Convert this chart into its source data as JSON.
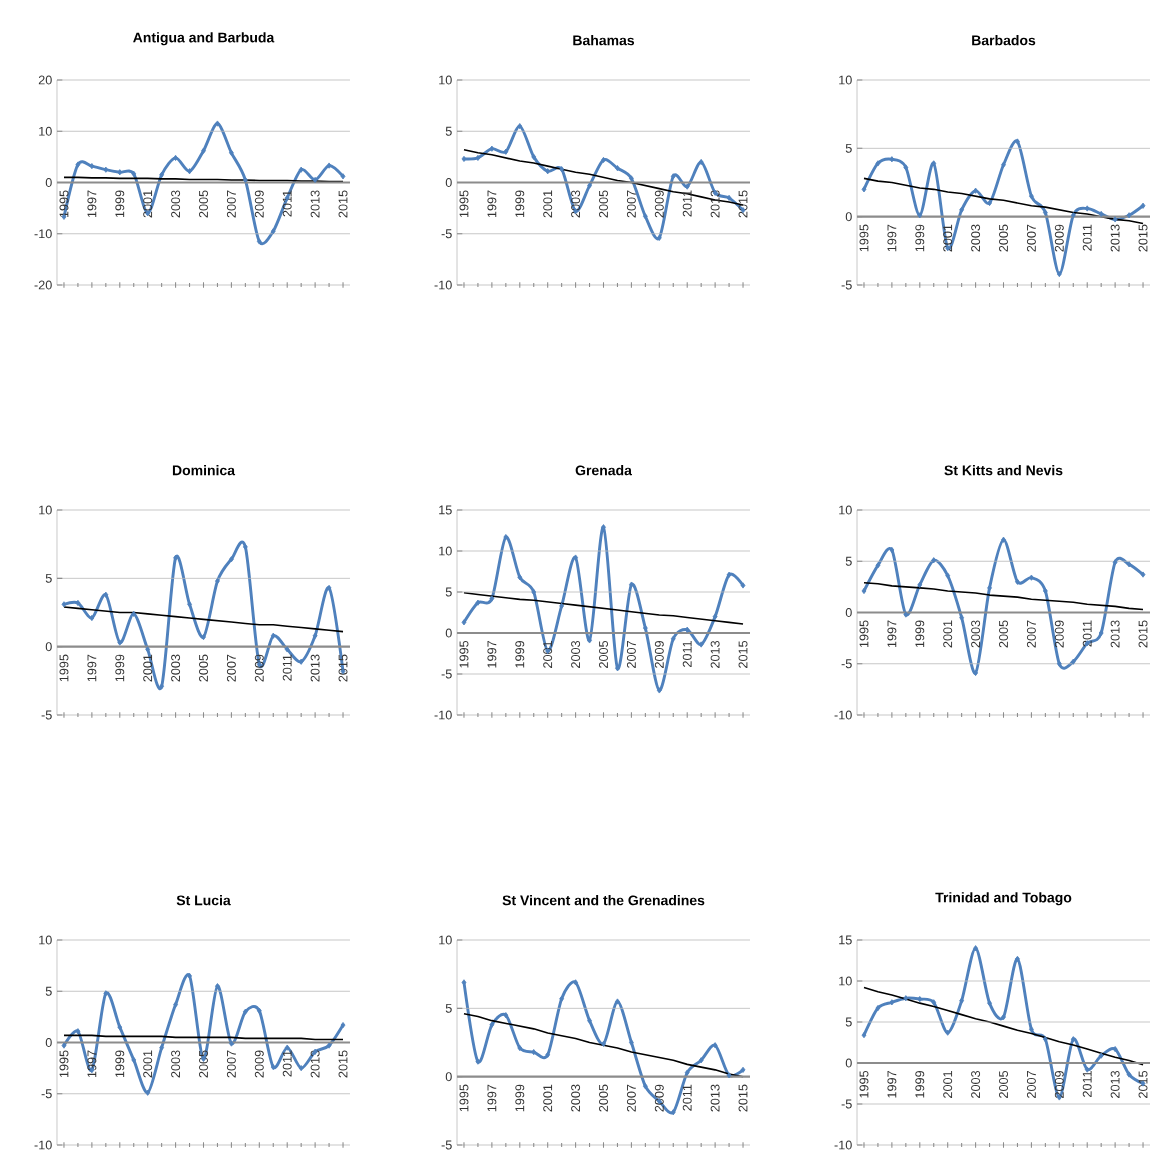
{
  "chart_data": [
    {
      "type": "line",
      "title": "Antigua and Barbuda",
      "x": [
        1995,
        1996,
        1997,
        1998,
        1999,
        2000,
        2001,
        2002,
        2003,
        2004,
        2005,
        2006,
        2007,
        2008,
        2009,
        2010,
        2011,
        2012,
        2013,
        2014,
        2015
      ],
      "xlim": [
        1994.5,
        2015.5
      ],
      "xticks": [
        1995,
        1997,
        1999,
        2001,
        2003,
        2005,
        2007,
        2009,
        2011,
        2013,
        2015
      ],
      "ylim": [
        -20,
        20
      ],
      "yticks": [
        -20,
        -10,
        0,
        10,
        20
      ],
      "grid": "y",
      "marker": "diamond",
      "series": [
        {
          "color": "#4f81bd",
          "values": [
            -6.7,
            3.5,
            3.2,
            2.5,
            2.0,
            1.7,
            -6.0,
            1.5,
            4.8,
            2.2,
            6.2,
            11.5,
            5.8,
            0.5,
            -11.5,
            -9.5,
            -3.0,
            2.5,
            0.5,
            3.3,
            1.2
          ]
        },
        {
          "type": "line",
          "values": [
            1.0,
            1.0,
            0.9,
            0.9,
            0.8,
            0.8,
            0.8,
            0.7,
            0.7,
            0.6,
            0.6,
            0.6,
            0.5,
            0.5,
            0.4,
            0.4,
            0.4,
            0.3,
            0.3,
            0.2,
            0.2
          ],
          "color": "#000000",
          "marker": "none"
        }
      ]
    },
    {
      "type": "line",
      "title": "Bahamas",
      "x": [
        1995,
        1996,
        1997,
        1998,
        1999,
        2000,
        2001,
        2002,
        2003,
        2004,
        2005,
        2006,
        2007,
        2008,
        2009,
        2010,
        2011,
        2012,
        2013,
        2014,
        2015
      ],
      "xlim": [
        1994.5,
        2015.5
      ],
      "xticks": [
        1995,
        1997,
        1999,
        2001,
        2003,
        2005,
        2007,
        2009,
        2011,
        2013,
        2015
      ],
      "ylim": [
        -10,
        10
      ],
      "yticks": [
        -10,
        -5,
        0,
        5,
        10
      ],
      "grid": "y",
      "marker": "diamond",
      "series": [
        {
          "color": "#4f81bd",
          "values": [
            2.3,
            2.4,
            3.3,
            3.0,
            5.5,
            2.5,
            1.1,
            1.3,
            -2.8,
            -0.3,
            2.2,
            1.4,
            0.4,
            -3.3,
            -5.4,
            0.6,
            -0.4,
            2.0,
            -1.0,
            -1.5,
            -2.7
          ]
        },
        {
          "type": "line",
          "values": [
            3.2,
            2.9,
            2.7,
            2.4,
            2.1,
            1.9,
            1.6,
            1.3,
            1.0,
            0.8,
            0.5,
            0.2,
            0.0,
            -0.3,
            -0.6,
            -0.9,
            -1.1,
            -1.4,
            -1.7,
            -1.9,
            -2.2
          ],
          "color": "#000000",
          "marker": "none"
        }
      ]
    },
    {
      "type": "line",
      "title": "Barbados",
      "x": [
        1995,
        1996,
        1997,
        1998,
        1999,
        2000,
        2001,
        2002,
        2003,
        2004,
        2005,
        2006,
        2007,
        2008,
        2009,
        2010,
        2011,
        2012,
        2013,
        2014,
        2015
      ],
      "xlim": [
        1994.5,
        2015.5
      ],
      "xticks": [
        1995,
        1997,
        1999,
        2001,
        2003,
        2005,
        2007,
        2009,
        2011,
        2013,
        2015
      ],
      "ylim": [
        -5,
        10
      ],
      "yticks": [
        -5,
        0,
        5,
        10
      ],
      "grid": "y",
      "marker": "diamond",
      "series": [
        {
          "color": "#4f81bd",
          "values": [
            2.0,
            3.9,
            4.2,
            3.6,
            0.1,
            3.9,
            -2.3,
            0.5,
            1.9,
            1.0,
            3.8,
            5.5,
            1.5,
            0.3,
            -4.2,
            0.1,
            0.6,
            0.2,
            -0.2,
            0.1,
            0.8
          ]
        },
        {
          "type": "line",
          "values": [
            2.8,
            2.6,
            2.5,
            2.3,
            2.1,
            2.0,
            1.8,
            1.7,
            1.5,
            1.3,
            1.2,
            1.0,
            0.8,
            0.7,
            0.5,
            0.3,
            0.2,
            0.0,
            -0.2,
            -0.3,
            -0.5
          ],
          "color": "#000000",
          "marker": "none"
        }
      ]
    },
    {
      "type": "line",
      "title": "Dominica",
      "x": [
        1995,
        1996,
        1997,
        1998,
        1999,
        2000,
        2001,
        2002,
        2003,
        2004,
        2005,
        2006,
        2007,
        2008,
        2009,
        2010,
        2011,
        2012,
        2013,
        2014,
        2015
      ],
      "xlim": [
        1994.5,
        2015.5
      ],
      "xticks": [
        1995,
        1997,
        1999,
        2001,
        2003,
        2005,
        2007,
        2009,
        2011,
        2013,
        2015
      ],
      "ylim": [
        -5,
        10
      ],
      "yticks": [
        -5,
        0,
        5,
        10
      ],
      "grid": "y",
      "marker": "diamond",
      "series": [
        {
          "color": "#4f81bd",
          "values": [
            3.1,
            3.2,
            2.1,
            3.8,
            0.3,
            2.4,
            -0.2,
            -2.9,
            6.5,
            3.1,
            0.7,
            4.8,
            6.4,
            7.3,
            -1.3,
            0.8,
            -0.2,
            -1.1,
            0.8,
            4.3,
            -1.8
          ]
        },
        {
          "type": "line",
          "values": [
            2.9,
            2.8,
            2.7,
            2.6,
            2.5,
            2.5,
            2.4,
            2.3,
            2.2,
            2.1,
            2.0,
            1.9,
            1.8,
            1.7,
            1.6,
            1.6,
            1.5,
            1.4,
            1.3,
            1.2,
            1.1
          ],
          "color": "#000000",
          "marker": "none"
        }
      ]
    },
    {
      "type": "line",
      "title": "Grenada",
      "x": [
        1995,
        1996,
        1997,
        1998,
        1999,
        2000,
        2001,
        2002,
        2003,
        2004,
        2005,
        2006,
        2007,
        2008,
        2009,
        2010,
        2011,
        2012,
        2013,
        2014,
        2015
      ],
      "xlim": [
        1994.5,
        2015.5
      ],
      "xticks": [
        1995,
        1997,
        1999,
        2001,
        2003,
        2005,
        2007,
        2009,
        2011,
        2013,
        2015
      ],
      "ylim": [
        -10,
        15
      ],
      "yticks": [
        -10,
        -5,
        0,
        5,
        10,
        15
      ],
      "grid": "y",
      "marker": "diamond",
      "series": [
        {
          "color": "#4f81bd",
          "values": [
            1.3,
            3.7,
            4.2,
            11.7,
            6.8,
            5.0,
            -2.2,
            3.3,
            9.2,
            -0.9,
            12.9,
            -4.3,
            5.9,
            0.6,
            -7.0,
            -0.7,
            0.4,
            -1.4,
            2.0,
            7.1,
            5.8
          ]
        },
        {
          "type": "line",
          "values": [
            4.9,
            4.7,
            4.5,
            4.3,
            4.1,
            4.0,
            3.8,
            3.6,
            3.4,
            3.2,
            3.0,
            2.8,
            2.6,
            2.4,
            2.2,
            2.1,
            1.9,
            1.7,
            1.5,
            1.3,
            1.1
          ],
          "color": "#000000",
          "marker": "none"
        }
      ]
    },
    {
      "type": "line",
      "title": "St Kitts and Nevis",
      "x": [
        1995,
        1996,
        1997,
        1998,
        1999,
        2000,
        2001,
        2002,
        2003,
        2004,
        2005,
        2006,
        2007,
        2008,
        2009,
        2010,
        2011,
        2012,
        2013,
        2014,
        2015
      ],
      "xlim": [
        1994.5,
        2015.5
      ],
      "xticks": [
        1995,
        1997,
        1999,
        2001,
        2003,
        2005,
        2007,
        2009,
        2011,
        2013,
        2015
      ],
      "ylim": [
        -10,
        10
      ],
      "yticks": [
        -10,
        -5,
        0,
        5,
        10
      ],
      "grid": "y",
      "marker": "diamond",
      "series": [
        {
          "color": "#4f81bd",
          "values": [
            2.1,
            4.6,
            6.1,
            -0.2,
            2.7,
            5.1,
            3.6,
            -0.5,
            -5.9,
            2.4,
            7.1,
            3.0,
            3.4,
            2.1,
            -5.0,
            -4.8,
            -3.0,
            -2.0,
            4.9,
            4.7,
            3.7
          ]
        },
        {
          "type": "line",
          "values": [
            2.9,
            2.8,
            2.6,
            2.5,
            2.4,
            2.3,
            2.1,
            2.0,
            1.9,
            1.7,
            1.6,
            1.5,
            1.3,
            1.2,
            1.1,
            1.0,
            0.8,
            0.7,
            0.6,
            0.4,
            0.3
          ],
          "color": "#000000",
          "marker": "none"
        }
      ]
    },
    {
      "type": "line",
      "title": "St Lucia",
      "x": [
        1995,
        1996,
        1997,
        1998,
        1999,
        2000,
        2001,
        2002,
        2003,
        2004,
        2005,
        2006,
        2007,
        2008,
        2009,
        2010,
        2011,
        2012,
        2013,
        2014,
        2015
      ],
      "xlim": [
        1994.5,
        2015.5
      ],
      "xticks": [
        1995,
        1997,
        1999,
        2001,
        2003,
        2005,
        2007,
        2009,
        2011,
        2013,
        2015
      ],
      "ylim": [
        -10,
        10
      ],
      "yticks": [
        -10,
        -5,
        0,
        5,
        10
      ],
      "grid": "y",
      "marker": "diamond",
      "series": [
        {
          "color": "#4f81bd",
          "values": [
            -0.3,
            1.1,
            -2.7,
            4.8,
            1.5,
            -1.7,
            -4.9,
            -0.5,
            3.7,
            6.5,
            -1.6,
            5.5,
            -0.1,
            3.0,
            3.1,
            -2.4,
            -0.5,
            -2.5,
            -0.9,
            -0.3,
            1.7
          ]
        },
        {
          "type": "line",
          "values": [
            0.7,
            0.7,
            0.7,
            0.6,
            0.6,
            0.6,
            0.6,
            0.6,
            0.5,
            0.5,
            0.5,
            0.5,
            0.5,
            0.4,
            0.4,
            0.4,
            0.4,
            0.4,
            0.3,
            0.3,
            0.3
          ],
          "color": "#000000",
          "marker": "none"
        }
      ]
    },
    {
      "type": "line",
      "title": "St Vincent and the Grenadines",
      "x": [
        1995,
        1996,
        1997,
        1998,
        1999,
        2000,
        2001,
        2002,
        2003,
        2004,
        2005,
        2006,
        2007,
        2008,
        2009,
        2010,
        2011,
        2012,
        2013,
        2014,
        2015
      ],
      "xlim": [
        1994.5,
        2015.5
      ],
      "xticks": [
        1995,
        1997,
        1999,
        2001,
        2003,
        2005,
        2007,
        2009,
        2011,
        2013,
        2015
      ],
      "ylim": [
        -5,
        10
      ],
      "yticks": [
        -5,
        0,
        5,
        10
      ],
      "grid": "y",
      "marker": "diamond",
      "series": [
        {
          "color": "#4f81bd",
          "values": [
            6.9,
            1.1,
            3.8,
            4.5,
            2.1,
            1.8,
            1.6,
            5.7,
            6.9,
            4.1,
            2.4,
            5.5,
            2.5,
            -0.7,
            -1.8,
            -2.6,
            0.3,
            1.2,
            2.3,
            0.1,
            0.5
          ]
        },
        {
          "type": "line",
          "values": [
            4.6,
            4.4,
            4.1,
            3.9,
            3.7,
            3.5,
            3.2,
            3.0,
            2.8,
            2.5,
            2.3,
            2.1,
            1.8,
            1.6,
            1.4,
            1.2,
            0.9,
            0.7,
            0.5,
            0.2,
            0.0
          ],
          "color": "#000000",
          "marker": "none"
        }
      ]
    },
    {
      "type": "line",
      "title": "Trinidad and Tobago",
      "x": [
        1995,
        1996,
        1997,
        1998,
        1999,
        2000,
        2001,
        2002,
        2003,
        2004,
        2005,
        2006,
        2007,
        2008,
        2009,
        2010,
        2011,
        2012,
        2013,
        2014,
        2015
      ],
      "xlim": [
        1994.5,
        2015.5
      ],
      "xticks": [
        1995,
        1997,
        1999,
        2001,
        2003,
        2005,
        2007,
        2009,
        2011,
        2013,
        2015
      ],
      "ylim": [
        -10,
        15
      ],
      "yticks": [
        -10,
        -5,
        0,
        5,
        10,
        15
      ],
      "grid": "y",
      "marker": "diamond",
      "series": [
        {
          "color": "#4f81bd",
          "values": [
            3.4,
            6.7,
            7.4,
            7.9,
            7.8,
            7.4,
            3.7,
            7.6,
            14.0,
            7.3,
            5.6,
            12.7,
            4.1,
            2.9,
            -4.2,
            2.9,
            -0.8,
            0.9,
            1.7,
            -1.4,
            -2.5
          ]
        },
        {
          "type": "line",
          "values": [
            9.2,
            8.7,
            8.3,
            7.8,
            7.3,
            6.9,
            6.4,
            5.9,
            5.4,
            5.0,
            4.5,
            4.0,
            3.6,
            3.1,
            2.6,
            2.2,
            1.7,
            1.2,
            0.7,
            0.3,
            -0.2
          ],
          "color": "#000000",
          "marker": "none"
        }
      ]
    }
  ]
}
